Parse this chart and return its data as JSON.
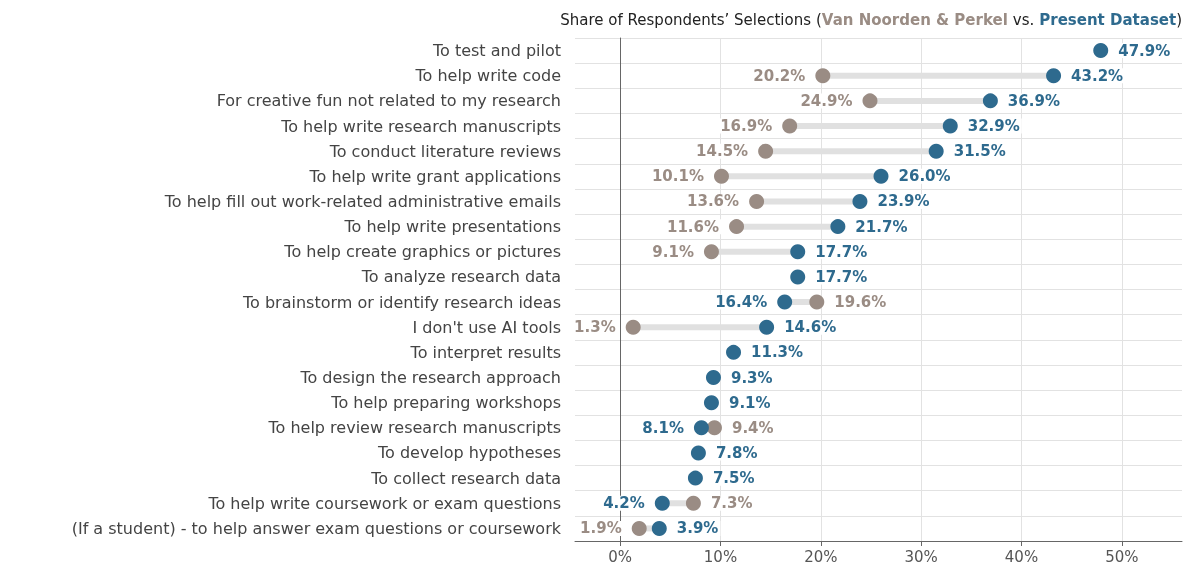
{
  "chart_data": {
    "type": "scatter",
    "orientation": "horizontal",
    "title": "Share of Respondents’ Selections",
    "annotations": [
      "(",
      "vs.",
      ")"
    ],
    "categories": [
      "To test and pilot",
      "To help write code",
      "For creative fun not related to my research",
      "To help write research manuscripts",
      "To conduct literature reviews",
      "To help write grant applications",
      "To help fill out work-related administrative emails",
      "To help write presentations",
      "To help create graphics or pictures",
      "To analyze research data",
      "To brainstorm or identify research ideas",
      "I don't use AI tools",
      "To interpret results",
      "To design the research approach",
      "To help preparing workshops",
      "To help review research manuscripts",
      "To develop hypotheses",
      "To collect research data",
      "To help write coursework or exam questions",
      "(If a student) - to help answer exam questions or coursework"
    ],
    "series": [
      {
        "name": "Van Noorden & Perkel",
        "color": "#9a8c84",
        "values": [
          null,
          20.2,
          24.9,
          16.9,
          14.5,
          10.1,
          13.6,
          11.6,
          9.1,
          null,
          19.6,
          1.3,
          null,
          null,
          null,
          9.4,
          null,
          null,
          7.3,
          1.9
        ],
        "value_labels": [
          null,
          "20.2%",
          "24.9%",
          "16.9%",
          "14.5%",
          "10.1%",
          "13.6%",
          "11.6%",
          "9.1%",
          null,
          "19.6%",
          "1.3%",
          null,
          null,
          null,
          "9.4%",
          null,
          null,
          "7.3%",
          "1.9%"
        ]
      },
      {
        "name": "Present Dataset",
        "color": "#2e6a8e",
        "values": [
          47.9,
          43.2,
          36.9,
          32.9,
          31.5,
          26.0,
          23.9,
          21.7,
          17.7,
          17.7,
          16.4,
          14.6,
          11.3,
          9.3,
          9.1,
          8.1,
          7.8,
          7.5,
          4.2,
          3.9
        ],
        "value_labels": [
          "47.9%",
          "43.2%",
          "36.9%",
          "32.9%",
          "31.5%",
          "26.0%",
          "23.9%",
          "21.7%",
          "17.7%",
          "17.7%",
          "16.4%",
          "14.6%",
          "11.3%",
          "9.3%",
          "9.1%",
          "8.1%",
          "7.8%",
          "7.5%",
          "4.2%",
          "3.9%"
        ]
      }
    ],
    "xlim": [
      -4.5,
      56
    ],
    "xticks": [
      {
        "value": 0,
        "label": "0%"
      },
      {
        "value": 10,
        "label": "10%"
      },
      {
        "value": 20,
        "label": "20%"
      },
      {
        "value": 30,
        "label": "30%"
      },
      {
        "value": 40,
        "label": "40%"
      },
      {
        "value": 50,
        "label": "50%"
      }
    ],
    "grid": true,
    "legend": "top",
    "marker": "circle"
  }
}
